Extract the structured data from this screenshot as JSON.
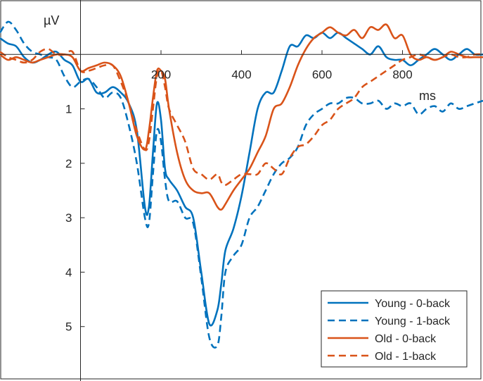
{
  "chart_data": {
    "type": "line",
    "title": "",
    "xlabel": "ms",
    "ylabel": "µV",
    "xlim": [
      -200,
      1000
    ],
    "ylim": [
      -1,
      6
    ],
    "y_inverted": true,
    "grid": false,
    "legend_position": "bottom-right",
    "x_ticks": [
      200,
      400,
      600,
      800
    ],
    "x_tick_labels": [
      "200",
      "400",
      "600",
      "800"
    ],
    "y_ticks": [
      1,
      2,
      3,
      4,
      5
    ],
    "y_tick_labels": [
      "1",
      "2",
      "3",
      "4",
      "5"
    ],
    "series": [
      {
        "name": "Young - 0-back",
        "color": "#0072BD",
        "dash": "solid",
        "x": [
          -200,
          -180,
          -160,
          -140,
          -120,
          -100,
          -80,
          -60,
          -40,
          -20,
          0,
          20,
          40,
          60,
          80,
          100,
          120,
          140,
          160,
          170,
          180,
          190,
          200,
          210,
          220,
          240,
          260,
          280,
          300,
          320,
          340,
          350,
          360,
          380,
          400,
          420,
          440,
          460,
          480,
          500,
          520,
          540,
          560,
          580,
          600,
          620,
          640,
          660,
          680,
          700,
          720,
          740,
          760,
          780,
          800,
          820,
          840,
          860,
          880,
          900,
          920,
          940,
          960,
          980,
          1000
        ],
        "values": [
          -0.3,
          -0.2,
          -0.15,
          0.05,
          0.15,
          0.1,
          0.0,
          -0.05,
          0.1,
          0.2,
          0.5,
          0.45,
          0.7,
          0.7,
          0.6,
          0.7,
          0.9,
          1.4,
          2.8,
          2.8,
          1.8,
          0.9,
          1.2,
          2.1,
          2.3,
          2.5,
          2.8,
          3.0,
          4.0,
          4.95,
          4.7,
          4.2,
          3.6,
          3.2,
          2.6,
          1.8,
          1.0,
          0.7,
          0.7,
          0.3,
          -0.15,
          -0.15,
          -0.35,
          -0.3,
          -0.4,
          -0.3,
          -0.4,
          -0.3,
          -0.2,
          -0.1,
          0.0,
          -0.15,
          0.05,
          0.1,
          0.1,
          0.2,
          0.1,
          0.0,
          -0.1,
          0.0,
          0.1,
          0.0,
          -0.1,
          0.0,
          0.0
        ]
      },
      {
        "name": "Young - 1-back",
        "color": "#0072BD",
        "dash": "dashed",
        "x": [
          -200,
          -180,
          -160,
          -140,
          -120,
          -100,
          -80,
          -60,
          -40,
          -20,
          0,
          20,
          40,
          60,
          80,
          100,
          120,
          140,
          160,
          170,
          180,
          190,
          200,
          210,
          220,
          240,
          260,
          280,
          300,
          320,
          340,
          350,
          360,
          380,
          400,
          420,
          440,
          460,
          480,
          500,
          520,
          540,
          560,
          580,
          600,
          620,
          640,
          660,
          680,
          700,
          720,
          740,
          760,
          780,
          800,
          820,
          840,
          860,
          880,
          900,
          920,
          940,
          960,
          980,
          1000
        ],
        "values": [
          -0.4,
          -0.6,
          -0.45,
          -0.2,
          -0.05,
          0.0,
          0.05,
          0.1,
          0.4,
          0.6,
          0.5,
          0.45,
          0.6,
          0.8,
          0.7,
          0.8,
          1.3,
          2.0,
          3.0,
          3.1,
          2.2,
          1.4,
          1.6,
          2.3,
          2.7,
          2.7,
          3.0,
          3.1,
          4.1,
          5.2,
          5.35,
          4.8,
          4.0,
          3.7,
          3.5,
          3.0,
          2.8,
          2.5,
          2.2,
          2.0,
          1.9,
          1.7,
          1.3,
          1.1,
          1.0,
          0.9,
          0.9,
          0.8,
          0.8,
          0.9,
          0.9,
          0.85,
          1.0,
          0.9,
          0.95,
          0.9,
          1.1,
          1.0,
          0.95,
          1.05,
          0.9,
          1.0,
          0.95,
          0.9,
          0.85
        ]
      },
      {
        "name": "Old - 0-back",
        "color": "#D95319",
        "dash": "solid",
        "x": [
          -200,
          -180,
          -160,
          -140,
          -120,
          -100,
          -80,
          -60,
          -40,
          -20,
          0,
          20,
          40,
          60,
          80,
          100,
          120,
          140,
          160,
          170,
          180,
          190,
          200,
          210,
          220,
          240,
          260,
          280,
          300,
          320,
          340,
          350,
          360,
          380,
          400,
          420,
          440,
          460,
          480,
          500,
          520,
          540,
          560,
          580,
          600,
          620,
          640,
          660,
          680,
          700,
          720,
          740,
          760,
          780,
          800,
          820,
          840,
          860,
          880,
          900,
          920,
          940,
          960,
          980,
          1000
        ],
        "values": [
          0.0,
          0.1,
          0.05,
          0.1,
          0.15,
          0.1,
          0.05,
          0.0,
          0.0,
          0.05,
          0.3,
          0.25,
          0.2,
          0.15,
          0.2,
          0.4,
          0.9,
          1.5,
          1.75,
          1.4,
          0.8,
          0.3,
          0.3,
          0.45,
          1.0,
          1.8,
          2.3,
          2.5,
          2.55,
          2.55,
          2.8,
          2.85,
          2.75,
          2.5,
          2.3,
          2.1,
          1.8,
          1.5,
          1.0,
          0.9,
          0.6,
          0.2,
          -0.1,
          -0.3,
          -0.4,
          -0.5,
          -0.4,
          -0.35,
          -0.45,
          -0.3,
          -0.5,
          -0.45,
          -0.55,
          -0.3,
          -0.35,
          0.0,
          0.1,
          0.05,
          0.1,
          0.05,
          -0.05,
          0.0,
          0.05,
          0.05,
          0.05
        ]
      },
      {
        "name": "Old - 1-back",
        "color": "#D95319",
        "dash": "dashed",
        "x": [
          -200,
          -180,
          -160,
          -140,
          -120,
          -100,
          -80,
          -60,
          -40,
          -20,
          0,
          20,
          40,
          60,
          80,
          100,
          120,
          140,
          160,
          170,
          180,
          190,
          200,
          210,
          220,
          240,
          260,
          280,
          300,
          320,
          340,
          350,
          360,
          380,
          400,
          420,
          440,
          460,
          480,
          500,
          520,
          540,
          560,
          580,
          600,
          620,
          640,
          660,
          680,
          700,
          720,
          740,
          760,
          780,
          800,
          820,
          840,
          860,
          880,
          900,
          920,
          940,
          960,
          980,
          1000
        ],
        "values": [
          -0.05,
          0.05,
          0.1,
          0.15,
          0.1,
          -0.05,
          -0.1,
          0.0,
          0.0,
          -0.05,
          0.3,
          0.3,
          0.25,
          0.2,
          0.2,
          0.5,
          0.9,
          1.4,
          1.75,
          1.6,
          1.0,
          0.4,
          0.3,
          0.6,
          1.0,
          1.3,
          1.6,
          2.1,
          2.2,
          2.3,
          2.2,
          2.35,
          2.4,
          2.3,
          2.2,
          2.2,
          2.2,
          2.0,
          2.1,
          2.2,
          1.9,
          1.7,
          1.65,
          1.5,
          1.3,
          1.2,
          1.0,
          0.9,
          0.8,
          0.6,
          0.5,
          0.4,
          0.3,
          0.2,
          0.1,
          0.05,
          0.0,
          0.05,
          0.1,
          0.05,
          0.0,
          0.05,
          0.05,
          0.0,
          0.0
        ]
      }
    ]
  }
}
